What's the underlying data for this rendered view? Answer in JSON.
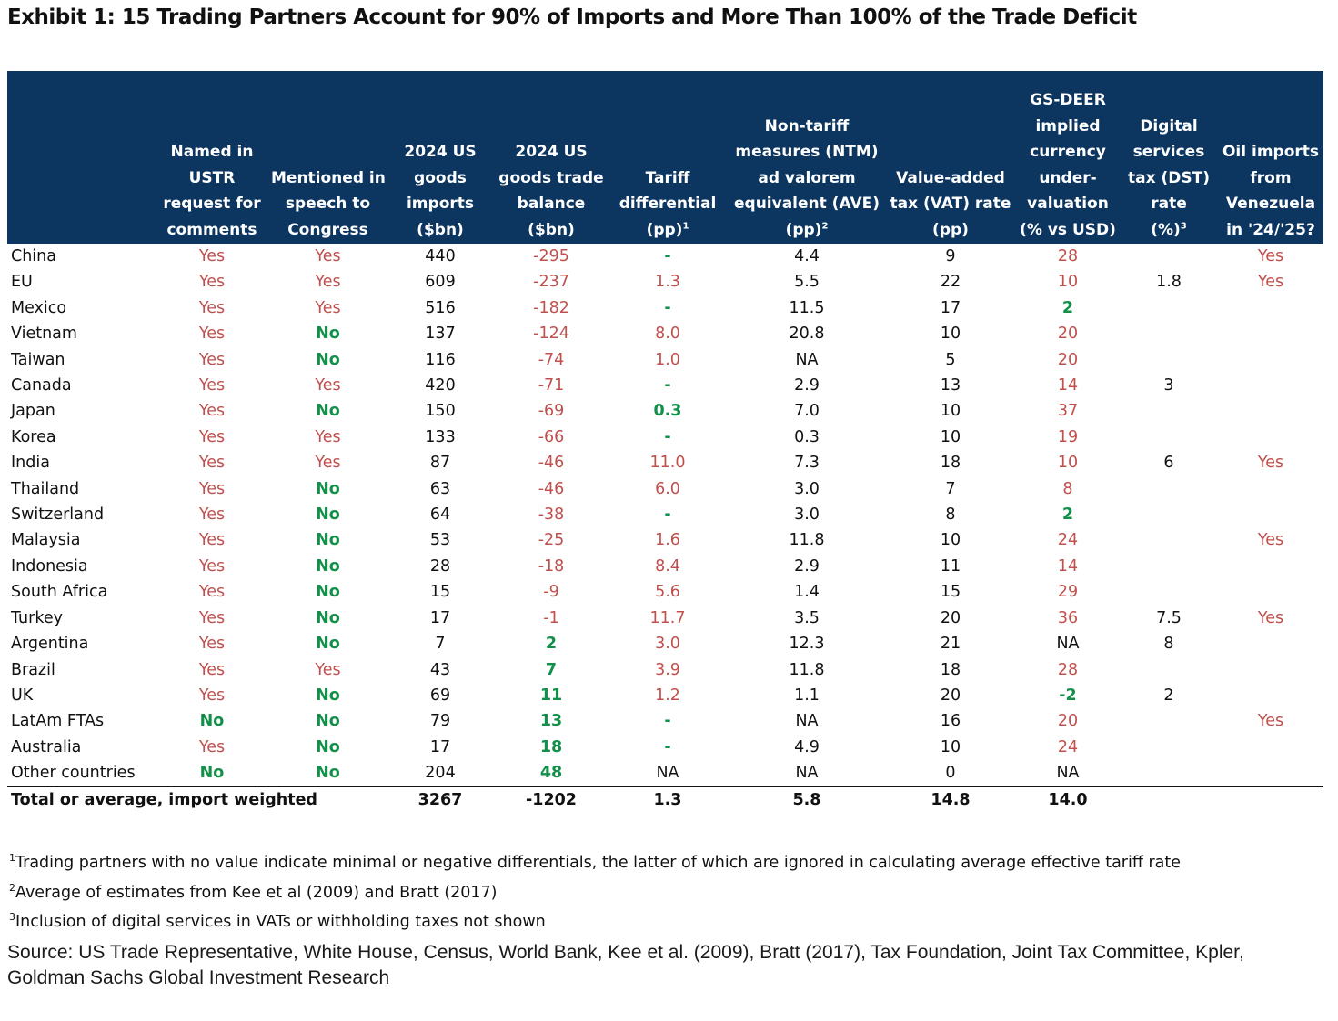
{
  "title": "Exhibit 1: 15 Trading Partners Account for 90% of Imports and More Than 100% of the Trade Deficit",
  "colors": {
    "header_bg": "#0c3560",
    "red": "#c0504d",
    "green": "#12904a"
  },
  "headers": [
    {
      "lines": [
        ""
      ],
      "sup": ""
    },
    {
      "lines": [
        "Named in",
        "USTR",
        "request for",
        "comments"
      ],
      "sup": ""
    },
    {
      "lines": [
        "Mentioned in",
        "speech to",
        "Congress"
      ],
      "sup": ""
    },
    {
      "lines": [
        "2024 US",
        "goods",
        "imports",
        "($bn)"
      ],
      "sup": ""
    },
    {
      "lines": [
        "2024 US",
        "goods trade",
        "balance",
        "($bn)"
      ],
      "sup": ""
    },
    {
      "lines": [
        "Tariff",
        "differential",
        "(pp)"
      ],
      "sup": "1"
    },
    {
      "lines": [
        "Non-tariff",
        "measures (NTM)",
        "ad valorem",
        "equivalent (AVE)",
        "(pp)"
      ],
      "sup": "2"
    },
    {
      "lines": [
        "Value-added",
        "tax (VAT) rate",
        "(pp)"
      ],
      "sup": ""
    },
    {
      "lines": [
        "GS-DEER",
        "implied",
        "currency",
        "under-",
        "valuation",
        "(% vs USD)"
      ],
      "sup": ""
    },
    {
      "lines": [
        "Digital",
        "services",
        "tax (DST)",
        "rate",
        "(%)"
      ],
      "sup": "3"
    },
    {
      "lines": [
        "Oil imports",
        "from",
        "Venezuela",
        "in '24/'25?"
      ],
      "sup": ""
    }
  ],
  "chart_data": {
    "type": "table",
    "title": "Exhibit 1: 15 Trading Partners Account for 90% of Imports and More Than 100% of the Trade Deficit",
    "rows": [
      {
        "country": "China",
        "cells": [
          [
            "Yes",
            "red"
          ],
          [
            "Yes",
            "red"
          ],
          [
            "440",
            "blk"
          ],
          [
            "-295",
            "red"
          ],
          [
            "-",
            "green"
          ],
          [
            "4.4",
            "blk"
          ],
          [
            "9",
            "blk"
          ],
          [
            "28",
            "red"
          ],
          [
            "",
            ""
          ],
          [
            "Yes",
            "red"
          ]
        ]
      },
      {
        "country": "EU",
        "cells": [
          [
            "Yes",
            "red"
          ],
          [
            "Yes",
            "red"
          ],
          [
            "609",
            "blk"
          ],
          [
            "-237",
            "red"
          ],
          [
            "1.3",
            "red"
          ],
          [
            "5.5",
            "blk"
          ],
          [
            "22",
            "blk"
          ],
          [
            "10",
            "red"
          ],
          [
            "1.8",
            "blk"
          ],
          [
            "Yes",
            "red"
          ]
        ]
      },
      {
        "country": "Mexico",
        "cells": [
          [
            "Yes",
            "red"
          ],
          [
            "Yes",
            "red"
          ],
          [
            "516",
            "blk"
          ],
          [
            "-182",
            "red"
          ],
          [
            "-",
            "green"
          ],
          [
            "11.5",
            "blk"
          ],
          [
            "17",
            "blk"
          ],
          [
            "2",
            "green"
          ],
          [
            "",
            ""
          ],
          [
            "",
            ""
          ]
        ]
      },
      {
        "country": "Vietnam",
        "cells": [
          [
            "Yes",
            "red"
          ],
          [
            "No",
            "green"
          ],
          [
            "137",
            "blk"
          ],
          [
            "-124",
            "red"
          ],
          [
            "8.0",
            "red"
          ],
          [
            "20.8",
            "blk"
          ],
          [
            "10",
            "blk"
          ],
          [
            "20",
            "red"
          ],
          [
            "",
            ""
          ],
          [
            "",
            ""
          ]
        ]
      },
      {
        "country": "Taiwan",
        "cells": [
          [
            "Yes",
            "red"
          ],
          [
            "No",
            "green"
          ],
          [
            "116",
            "blk"
          ],
          [
            "-74",
            "red"
          ],
          [
            "1.0",
            "red"
          ],
          [
            "NA",
            "blk"
          ],
          [
            "5",
            "blk"
          ],
          [
            "20",
            "red"
          ],
          [
            "",
            ""
          ],
          [
            "",
            ""
          ]
        ]
      },
      {
        "country": "Canada",
        "cells": [
          [
            "Yes",
            "red"
          ],
          [
            "Yes",
            "red"
          ],
          [
            "420",
            "blk"
          ],
          [
            "-71",
            "red"
          ],
          [
            "-",
            "green"
          ],
          [
            "2.9",
            "blk"
          ],
          [
            "13",
            "blk"
          ],
          [
            "14",
            "red"
          ],
          [
            "3",
            "blk"
          ],
          [
            "",
            ""
          ]
        ]
      },
      {
        "country": "Japan",
        "cells": [
          [
            "Yes",
            "red"
          ],
          [
            "No",
            "green"
          ],
          [
            "150",
            "blk"
          ],
          [
            "-69",
            "red"
          ],
          [
            "0.3",
            "green"
          ],
          [
            "7.0",
            "blk"
          ],
          [
            "10",
            "blk"
          ],
          [
            "37",
            "red"
          ],
          [
            "",
            ""
          ],
          [
            "",
            ""
          ]
        ]
      },
      {
        "country": "Korea",
        "cells": [
          [
            "Yes",
            "red"
          ],
          [
            "Yes",
            "red"
          ],
          [
            "133",
            "blk"
          ],
          [
            "-66",
            "red"
          ],
          [
            "-",
            "green"
          ],
          [
            "0.3",
            "blk"
          ],
          [
            "10",
            "blk"
          ],
          [
            "19",
            "red"
          ],
          [
            "",
            ""
          ],
          [
            "",
            ""
          ]
        ]
      },
      {
        "country": "India",
        "cells": [
          [
            "Yes",
            "red"
          ],
          [
            "Yes",
            "red"
          ],
          [
            "87",
            "blk"
          ],
          [
            "-46",
            "red"
          ],
          [
            "11.0",
            "red"
          ],
          [
            "7.3",
            "blk"
          ],
          [
            "18",
            "blk"
          ],
          [
            "10",
            "red"
          ],
          [
            "6",
            "blk"
          ],
          [
            "Yes",
            "red"
          ]
        ]
      },
      {
        "country": "Thailand",
        "cells": [
          [
            "Yes",
            "red"
          ],
          [
            "No",
            "green"
          ],
          [
            "63",
            "blk"
          ],
          [
            "-46",
            "red"
          ],
          [
            "6.0",
            "red"
          ],
          [
            "3.0",
            "blk"
          ],
          [
            "7",
            "blk"
          ],
          [
            "8",
            "red"
          ],
          [
            "",
            ""
          ],
          [
            "",
            ""
          ]
        ]
      },
      {
        "country": "Switzerland",
        "cells": [
          [
            "Yes",
            "red"
          ],
          [
            "No",
            "green"
          ],
          [
            "64",
            "blk"
          ],
          [
            "-38",
            "red"
          ],
          [
            "-",
            "green"
          ],
          [
            "3.0",
            "blk"
          ],
          [
            "8",
            "blk"
          ],
          [
            "2",
            "green"
          ],
          [
            "",
            ""
          ],
          [
            "",
            ""
          ]
        ]
      },
      {
        "country": "Malaysia",
        "cells": [
          [
            "Yes",
            "red"
          ],
          [
            "No",
            "green"
          ],
          [
            "53",
            "blk"
          ],
          [
            "-25",
            "red"
          ],
          [
            "1.6",
            "red"
          ],
          [
            "11.8",
            "blk"
          ],
          [
            "10",
            "blk"
          ],
          [
            "24",
            "red"
          ],
          [
            "",
            ""
          ],
          [
            "Yes",
            "red"
          ]
        ]
      },
      {
        "country": "Indonesia",
        "cells": [
          [
            "Yes",
            "red"
          ],
          [
            "No",
            "green"
          ],
          [
            "28",
            "blk"
          ],
          [
            "-18",
            "red"
          ],
          [
            "8.4",
            "red"
          ],
          [
            "2.9",
            "blk"
          ],
          [
            "11",
            "blk"
          ],
          [
            "14",
            "red"
          ],
          [
            "",
            ""
          ],
          [
            "",
            ""
          ]
        ]
      },
      {
        "country": "South Africa",
        "cells": [
          [
            "Yes",
            "red"
          ],
          [
            "No",
            "green"
          ],
          [
            "15",
            "blk"
          ],
          [
            "-9",
            "red"
          ],
          [
            "5.6",
            "red"
          ],
          [
            "1.4",
            "blk"
          ],
          [
            "15",
            "blk"
          ],
          [
            "29",
            "red"
          ],
          [
            "",
            ""
          ],
          [
            "",
            ""
          ]
        ]
      },
      {
        "country": "Turkey",
        "cells": [
          [
            "Yes",
            "red"
          ],
          [
            "No",
            "green"
          ],
          [
            "17",
            "blk"
          ],
          [
            "-1",
            "red"
          ],
          [
            "11.7",
            "red"
          ],
          [
            "3.5",
            "blk"
          ],
          [
            "20",
            "blk"
          ],
          [
            "36",
            "red"
          ],
          [
            "7.5",
            "blk"
          ],
          [
            "Yes",
            "red"
          ]
        ]
      },
      {
        "country": "Argentina",
        "cells": [
          [
            "Yes",
            "red"
          ],
          [
            "No",
            "green"
          ],
          [
            "7",
            "blk"
          ],
          [
            "2",
            "green"
          ],
          [
            "3.0",
            "red"
          ],
          [
            "12.3",
            "blk"
          ],
          [
            "21",
            "blk"
          ],
          [
            "NA",
            "blk"
          ],
          [
            "8",
            "blk"
          ],
          [
            "",
            ""
          ]
        ]
      },
      {
        "country": "Brazil",
        "cells": [
          [
            "Yes",
            "red"
          ],
          [
            "Yes",
            "red"
          ],
          [
            "43",
            "blk"
          ],
          [
            "7",
            "green"
          ],
          [
            "3.9",
            "red"
          ],
          [
            "11.8",
            "blk"
          ],
          [
            "18",
            "blk"
          ],
          [
            "28",
            "red"
          ],
          [
            "",
            ""
          ],
          [
            "",
            ""
          ]
        ]
      },
      {
        "country": "UK",
        "cells": [
          [
            "Yes",
            "red"
          ],
          [
            "No",
            "green"
          ],
          [
            "69",
            "blk"
          ],
          [
            "11",
            "green"
          ],
          [
            "1.2",
            "red"
          ],
          [
            "1.1",
            "blk"
          ],
          [
            "20",
            "blk"
          ],
          [
            "-2",
            "green"
          ],
          [
            "2",
            "blk"
          ],
          [
            "",
            ""
          ]
        ]
      },
      {
        "country": "LatAm FTAs",
        "cells": [
          [
            "No",
            "green"
          ],
          [
            "No",
            "green"
          ],
          [
            "79",
            "blk"
          ],
          [
            "13",
            "green"
          ],
          [
            "-",
            "green"
          ],
          [
            "NA",
            "blk"
          ],
          [
            "16",
            "blk"
          ],
          [
            "20",
            "red"
          ],
          [
            "",
            ""
          ],
          [
            "Yes",
            "red"
          ]
        ]
      },
      {
        "country": "Australia",
        "cells": [
          [
            "Yes",
            "red"
          ],
          [
            "No",
            "green"
          ],
          [
            "17",
            "blk"
          ],
          [
            "18",
            "green"
          ],
          [
            "-",
            "green"
          ],
          [
            "4.9",
            "blk"
          ],
          [
            "10",
            "blk"
          ],
          [
            "24",
            "red"
          ],
          [
            "",
            ""
          ],
          [
            "",
            ""
          ]
        ]
      },
      {
        "country": "Other countries",
        "cells": [
          [
            "No",
            "green"
          ],
          [
            "No",
            "green"
          ],
          [
            "204",
            "blk"
          ],
          [
            "48",
            "green"
          ],
          [
            "NA",
            "blk"
          ],
          [
            "NA",
            "blk"
          ],
          [
            "0",
            "blk"
          ],
          [
            "NA",
            "blk"
          ],
          [
            "",
            ""
          ],
          [
            "",
            ""
          ]
        ]
      }
    ],
    "total": {
      "label": "Total or average, import weighted",
      "cells": [
        "",
        "",
        "3267",
        "-1202",
        "1.3",
        "5.8",
        "14.8",
        "14.0",
        "",
        ""
      ]
    }
  },
  "footnotes": [
    {
      "num": "1",
      "text": "Trading partners with no value indicate minimal or negative differentials, the latter of which are ignored in calculating average effective tariff rate"
    },
    {
      "num": "2",
      "text": "Average of estimates from Kee et al (2009) and Bratt (2017)"
    },
    {
      "num": "3",
      "text": "Inclusion of digital services in VATs or withholding taxes not shown"
    }
  ],
  "source": "Source: US Trade Representative, White House, Census, World Bank, Kee et al. (2009), Bratt (2017), Tax Foundation, Joint Tax Committee, Kpler, Goldman Sachs Global Investment Research"
}
